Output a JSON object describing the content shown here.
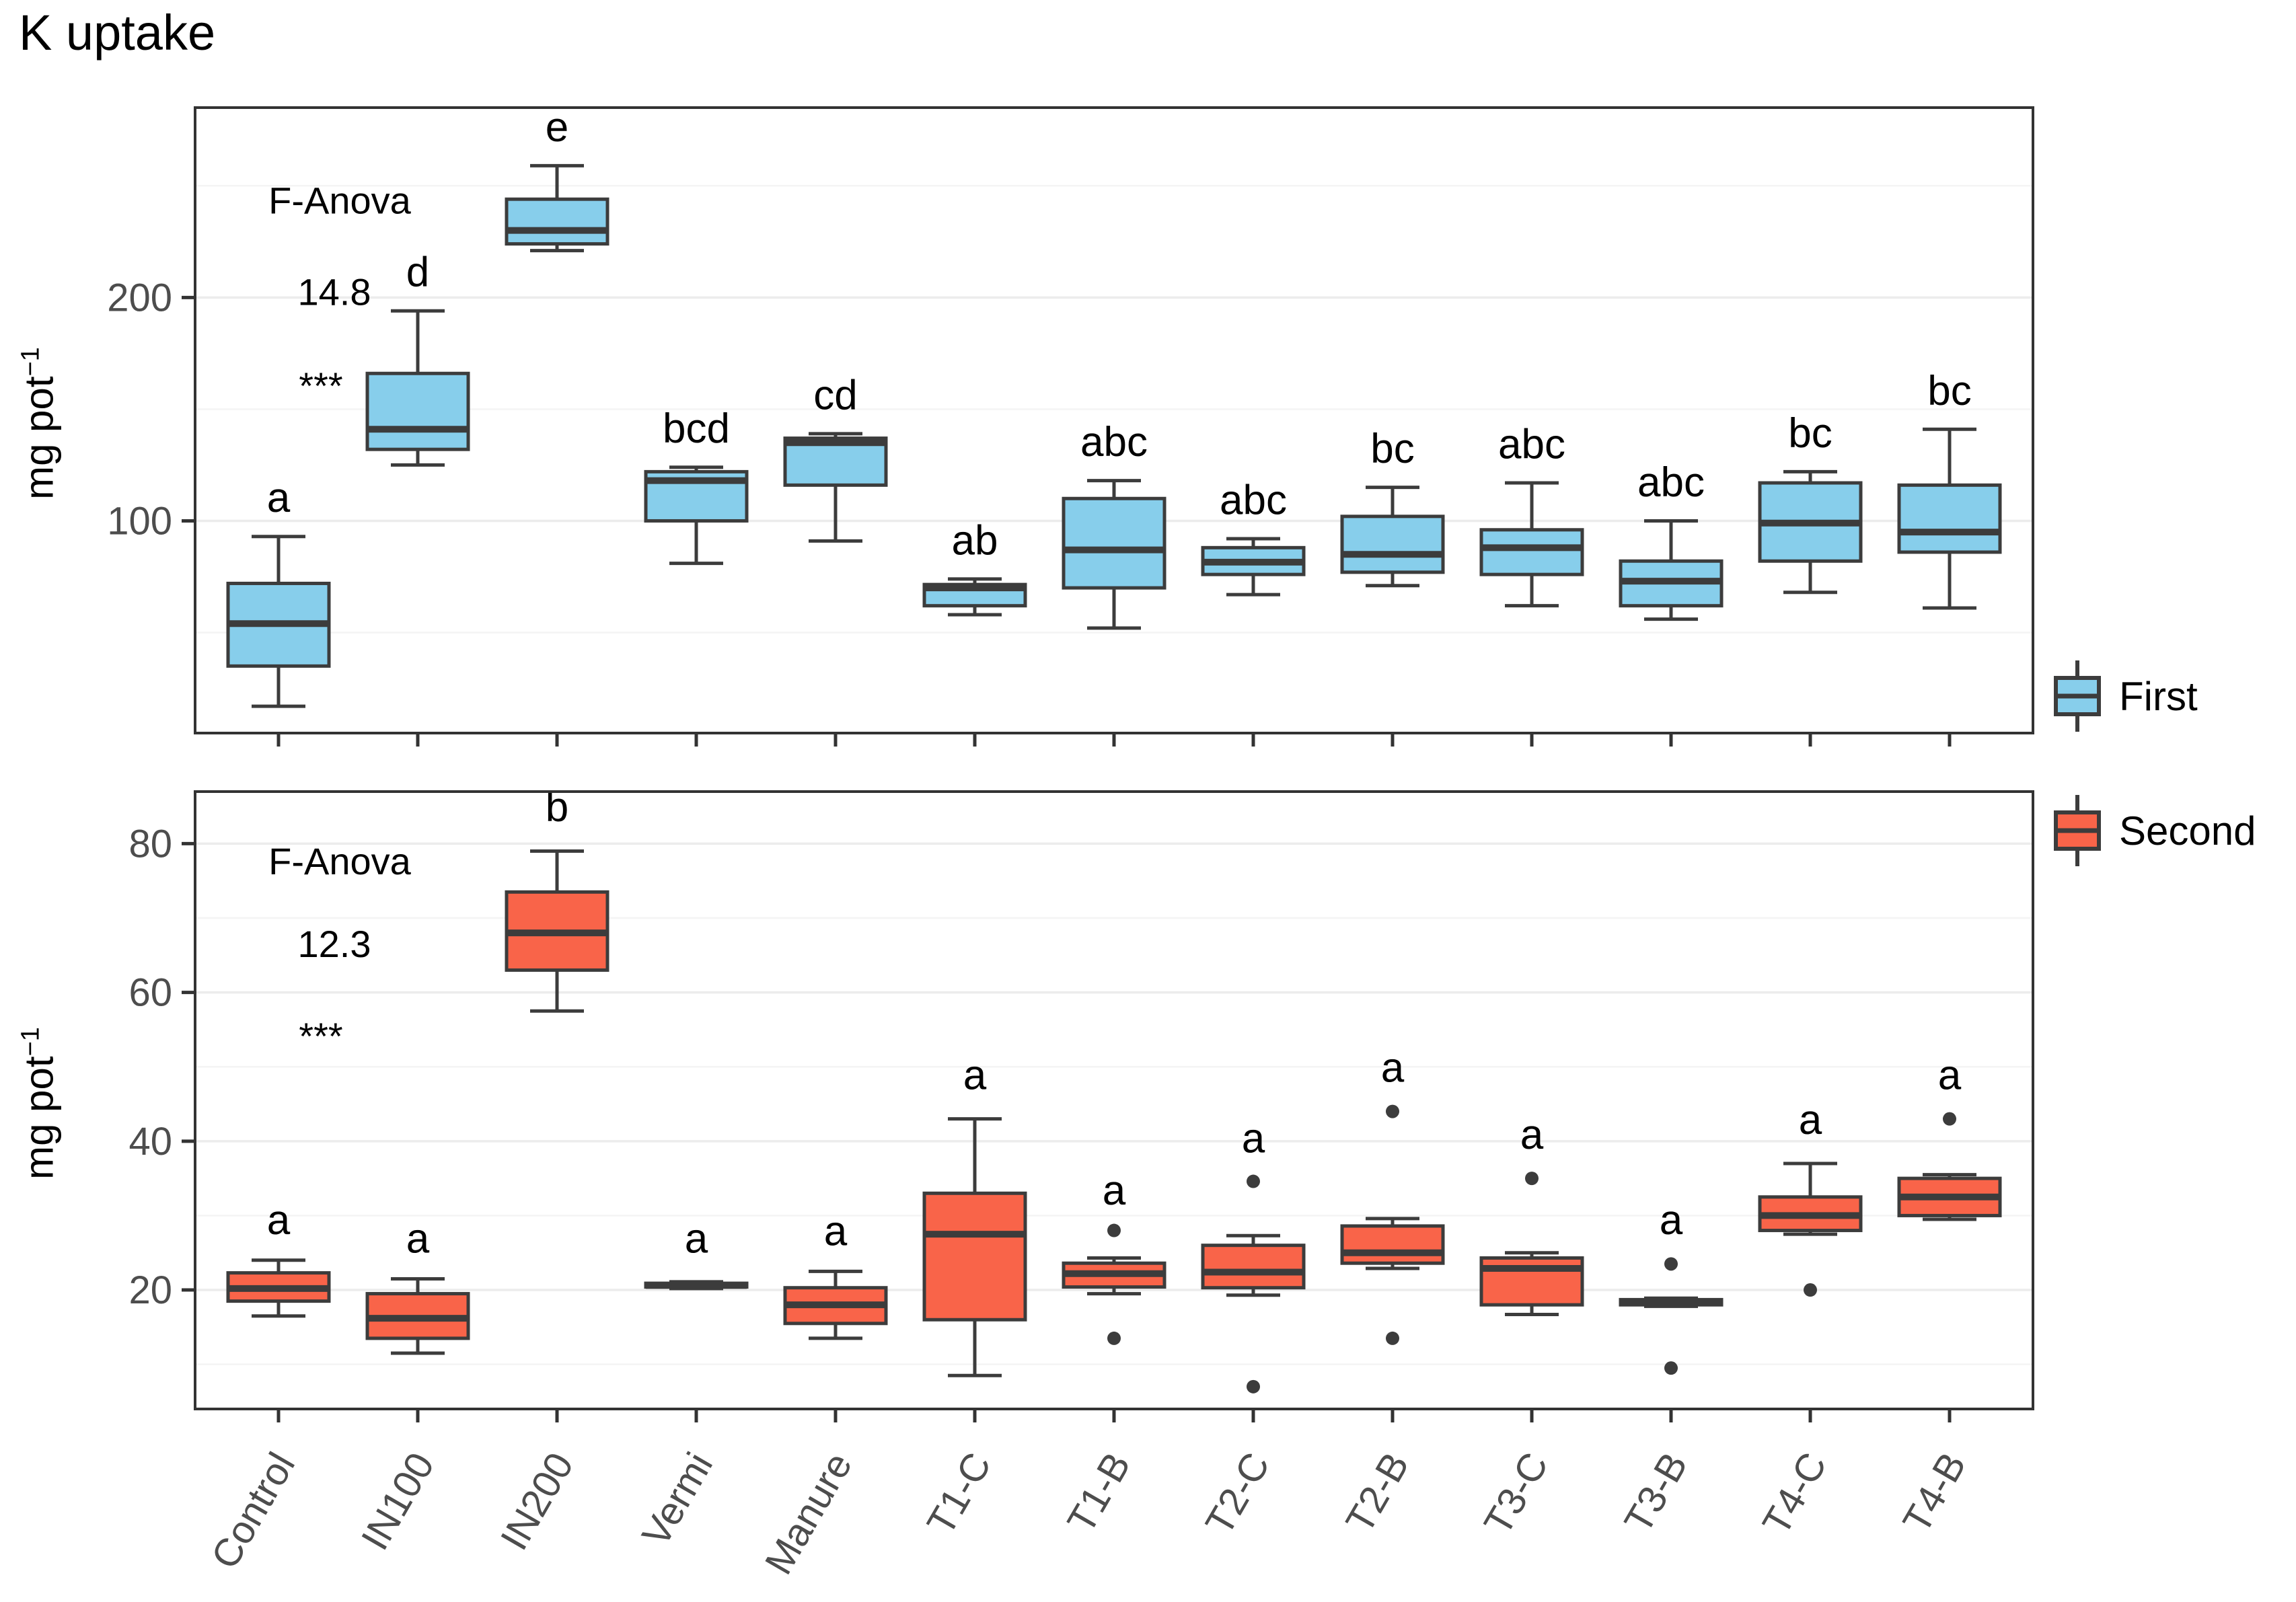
{
  "title": "K uptake",
  "y_axis_title": {
    "base": "mg pot",
    "exponent": "−1"
  },
  "legend": {
    "items": [
      {
        "label": "First",
        "color": "#87CEEB"
      },
      {
        "label": "Second",
        "color": "#F96449"
      }
    ]
  },
  "categories": [
    "Control",
    "IN100",
    "IN200",
    "Vermi",
    "Manure",
    "T1-C",
    "T1-B",
    "T2-C",
    "T2-B",
    "T3-C",
    "T3-B",
    "T4-C",
    "T4-B"
  ],
  "colors": {
    "stroke": "#3C3C3C",
    "grid_major": "#ECECEC",
    "grid_minor": "#F4F4F4",
    "panel_border": "#333333",
    "tick_text": "#4D4D4D"
  },
  "chart_data": [
    {
      "type": "boxplot",
      "panel": "first-season",
      "series_name": "First",
      "fill_color": "#87CEEB",
      "ylim": [
        5,
        285
      ],
      "yticks": [
        100,
        200
      ],
      "minor_gridlines": [
        50,
        150,
        250
      ],
      "grid": true,
      "legend_position": "right",
      "annotation": {
        "test": "F-Anova",
        "value": "14.8",
        "signif": "***"
      },
      "boxes": [
        {
          "category": "Control",
          "letter": "a",
          "whisker_low": 17,
          "q1": 35,
          "median": 54,
          "q3": 72,
          "whisker_high": 93,
          "outliers": [],
          "letter_y": 104
        },
        {
          "category": "IN100",
          "letter": "d",
          "whisker_low": 125,
          "q1": 132,
          "median": 141,
          "q3": 166,
          "whisker_high": 194,
          "outliers": [],
          "letter_y": 205
        },
        {
          "category": "IN200",
          "letter": "e",
          "whisker_low": 221,
          "q1": 224,
          "median": 230,
          "q3": 244,
          "whisker_high": 259,
          "outliers": [],
          "letter_y": 270
        },
        {
          "category": "Vermi",
          "letter": "bcd",
          "whisker_low": 81,
          "q1": 100,
          "median": 118,
          "q3": 122,
          "whisker_high": 124,
          "outliers": [],
          "letter_y": 135
        },
        {
          "category": "Manure",
          "letter": "cd",
          "whisker_low": 91,
          "q1": 116,
          "median": 135,
          "q3": 137,
          "whisker_high": 139,
          "outliers": [],
          "letter_y": 150
        },
        {
          "category": "T1-C",
          "letter": "ab",
          "whisker_low": 58,
          "q1": 62,
          "median": 70,
          "q3": 71.5,
          "whisker_high": 74,
          "outliers": [],
          "letter_y": 85
        },
        {
          "category": "T1-B",
          "letter": "abc",
          "whisker_low": 52,
          "q1": 70,
          "median": 87,
          "q3": 110,
          "whisker_high": 118,
          "outliers": [],
          "letter_y": 129
        },
        {
          "category": "T2-C",
          "letter": "abc",
          "whisker_low": 67,
          "q1": 76,
          "median": 81.5,
          "q3": 88,
          "whisker_high": 92,
          "outliers": [],
          "letter_y": 103
        },
        {
          "category": "T2-B",
          "letter": "bc",
          "whisker_low": 71,
          "q1": 77,
          "median": 85,
          "q3": 102,
          "whisker_high": 115,
          "outliers": [],
          "letter_y": 126
        },
        {
          "category": "T3-C",
          "letter": "abc",
          "whisker_low": 62,
          "q1": 76,
          "median": 88,
          "q3": 96,
          "whisker_high": 117,
          "outliers": [],
          "letter_y": 128
        },
        {
          "category": "T3-B",
          "letter": "abc",
          "whisker_low": 56,
          "q1": 62,
          "median": 73,
          "q3": 82,
          "whisker_high": 100,
          "outliers": [],
          "letter_y": 111
        },
        {
          "category": "T4-C",
          "letter": "bc",
          "whisker_low": 68,
          "q1": 82,
          "median": 99,
          "q3": 117,
          "whisker_high": 122,
          "outliers": [],
          "letter_y": 133
        },
        {
          "category": "T4-B",
          "letter": "bc",
          "whisker_low": 61,
          "q1": 86,
          "median": 95,
          "q3": 116,
          "whisker_high": 141,
          "outliers": [],
          "letter_y": 152
        }
      ]
    },
    {
      "type": "boxplot",
      "panel": "second-season",
      "series_name": "Second",
      "fill_color": "#F96449",
      "ylim": [
        4,
        87
      ],
      "yticks": [
        20,
        40,
        60,
        80
      ],
      "minor_gridlines": [
        10,
        30,
        50,
        70
      ],
      "grid": true,
      "legend_position": "right",
      "annotation": {
        "test": "F-Anova",
        "value": "12.3",
        "signif": "***"
      },
      "boxes": [
        {
          "category": "Control",
          "letter": "a",
          "whisker_low": 16.5,
          "q1": 18.5,
          "median": 20.2,
          "q3": 22.3,
          "whisker_high": 24,
          "outliers": [],
          "letter_y": 27.5
        },
        {
          "category": "IN100",
          "letter": "a",
          "whisker_low": 11.5,
          "q1": 13.5,
          "median": 16.2,
          "q3": 19.5,
          "whisker_high": 21.5,
          "outliers": [],
          "letter_y": 25
        },
        {
          "category": "IN200",
          "letter": "b",
          "whisker_low": 57.5,
          "q1": 63,
          "median": 68,
          "q3": 73.5,
          "whisker_high": 79,
          "outliers": [],
          "letter_y": 83
        },
        {
          "category": "Vermi",
          "letter": "a",
          "whisker_low": 20.2,
          "q1": 20.4,
          "median": 20.6,
          "q3": 20.9,
          "whisker_high": 21.1,
          "outliers": [],
          "letter_y": 25
        },
        {
          "category": "Manure",
          "letter": "a",
          "whisker_low": 13.5,
          "q1": 15.5,
          "median": 18,
          "q3": 20.3,
          "whisker_high": 22.5,
          "outliers": [],
          "letter_y": 26
        },
        {
          "category": "T1-C",
          "letter": "a",
          "whisker_low": 8.5,
          "q1": 16,
          "median": 27.5,
          "q3": 33,
          "whisker_high": 43,
          "outliers": [],
          "letter_y": 47
        },
        {
          "category": "T1-B",
          "letter": "a",
          "whisker_low": 19.5,
          "q1": 20.4,
          "median": 22.2,
          "q3": 23.6,
          "whisker_high": 24.3,
          "outliers": [
            28,
            13.5
          ],
          "letter_y": 31.5
        },
        {
          "category": "T2-C",
          "letter": "a",
          "whisker_low": 19.3,
          "q1": 20.3,
          "median": 22.4,
          "q3": 26,
          "whisker_high": 27.3,
          "outliers": [
            34.6,
            7
          ],
          "letter_y": 38.5
        },
        {
          "category": "T2-B",
          "letter": "a",
          "whisker_low": 22.9,
          "q1": 23.6,
          "median": 25,
          "q3": 28.6,
          "whisker_high": 29.6,
          "outliers": [
            44,
            13.5
          ],
          "letter_y": 48
        },
        {
          "category": "T3-C",
          "letter": "a",
          "whisker_low": 16.7,
          "q1": 18,
          "median": 22.9,
          "q3": 24.3,
          "whisker_high": 25,
          "outliers": [
            35
          ],
          "letter_y": 39
        },
        {
          "category": "T3-B",
          "letter": "a",
          "whisker_low": 17.8,
          "q1": 18,
          "median": 18.3,
          "q3": 18.7,
          "whisker_high": 18.9,
          "outliers": [
            23.5,
            9.5
          ],
          "letter_y": 27.5
        },
        {
          "category": "T4-C",
          "letter": "a",
          "whisker_low": 27.5,
          "q1": 28,
          "median": 30,
          "q3": 32.5,
          "whisker_high": 37,
          "outliers": [
            20
          ],
          "letter_y": 41
        },
        {
          "category": "T4-B",
          "letter": "a",
          "whisker_low": 29.5,
          "q1": 30,
          "median": 32.5,
          "q3": 35,
          "whisker_high": 35.5,
          "outliers": [
            43
          ],
          "letter_y": 47
        }
      ]
    }
  ]
}
